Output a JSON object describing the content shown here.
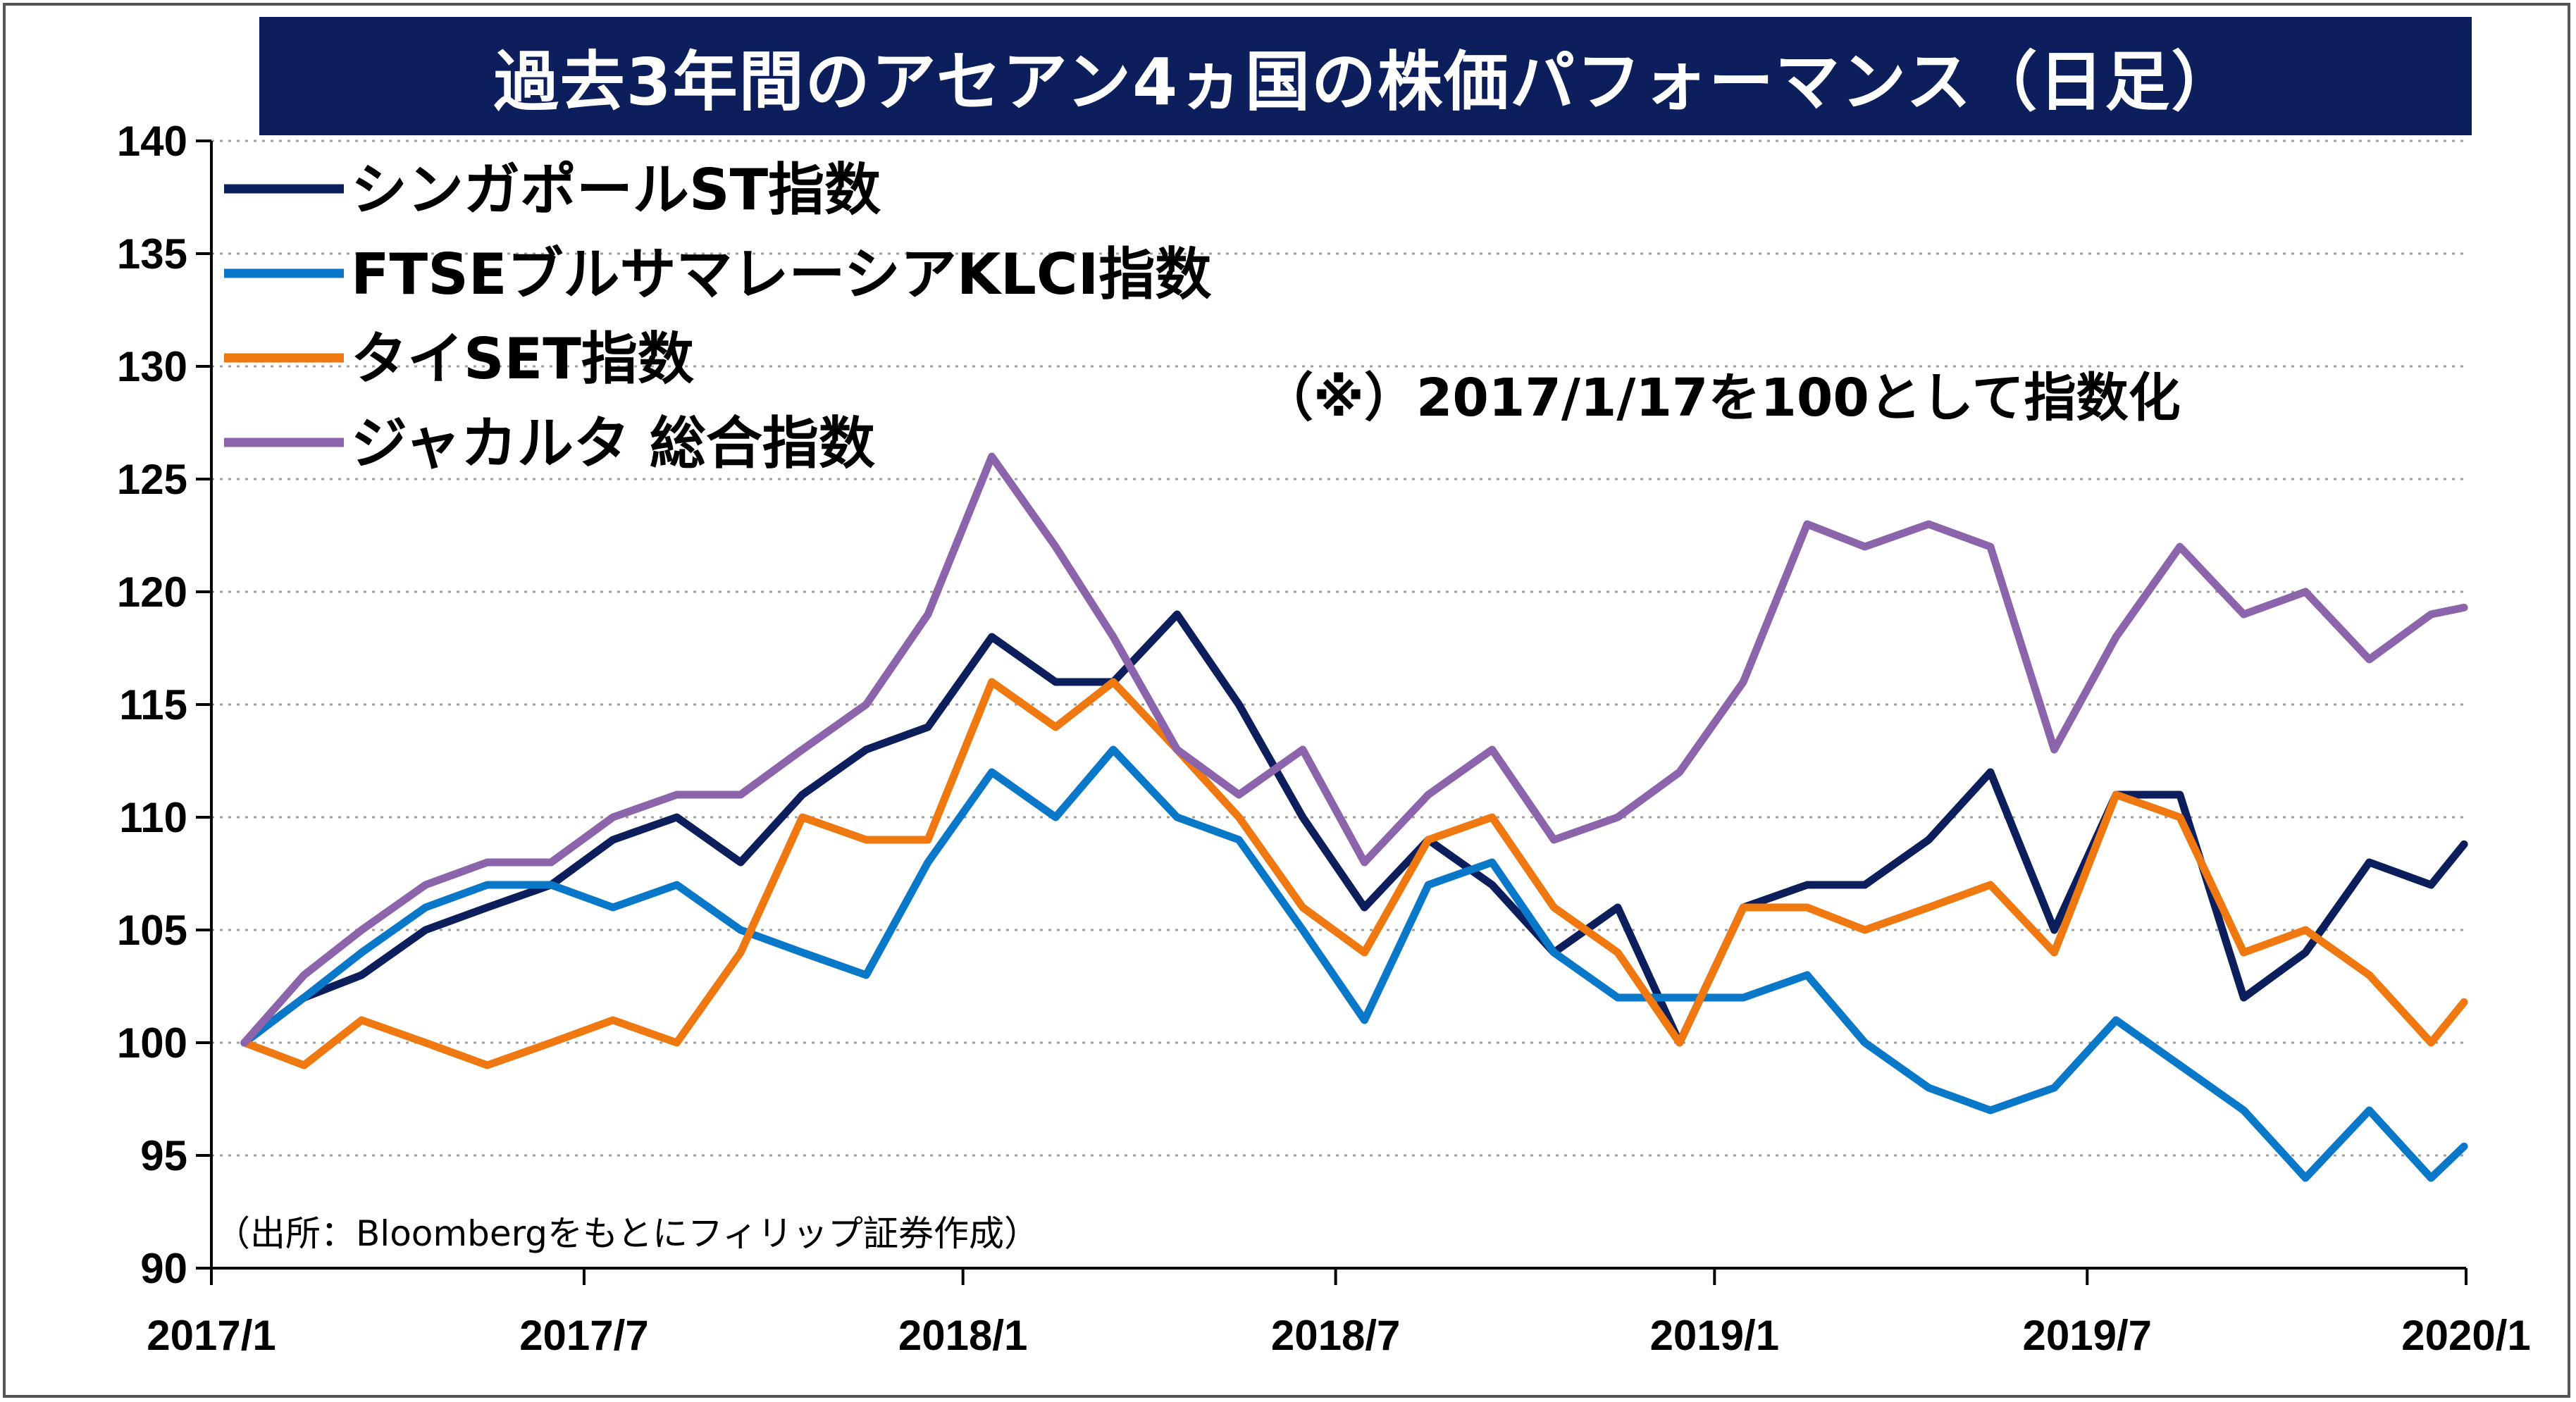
{
  "chart_data": {
    "type": "line",
    "title": "過去3年間のアセアン4ヵ国の株価パフォーマンス（日足）",
    "note": "（※）2017/1/17を100として指数化",
    "source": "（出所：Bloombergをもとにフィリップ証券作成）",
    "xlabel": "",
    "ylabel": "",
    "x_range": [
      "2017-01",
      "2020-01"
    ],
    "x_ticks": [
      "2017/1",
      "2017/7",
      "2018/1",
      "2018/7",
      "2019/1",
      "2019/7",
      "2020/1"
    ],
    "ylim": [
      90,
      140
    ],
    "y_ticks": [
      90,
      95,
      100,
      105,
      110,
      115,
      120,
      125,
      130,
      135,
      140
    ],
    "grid": true,
    "legend_position": "top-left",
    "x": [
      "2017-01-17",
      "2017-02-15",
      "2017-03-15",
      "2017-04-15",
      "2017-05-15",
      "2017-06-15",
      "2017-07-15",
      "2017-08-15",
      "2017-09-15",
      "2017-10-15",
      "2017-11-15",
      "2017-12-15",
      "2018-01-15",
      "2018-02-15",
      "2018-03-15",
      "2018-04-15",
      "2018-05-15",
      "2018-06-15",
      "2018-07-15",
      "2018-08-15",
      "2018-09-15",
      "2018-10-15",
      "2018-11-15",
      "2018-12-15",
      "2019-01-15",
      "2019-02-15",
      "2019-03-15",
      "2019-04-15",
      "2019-05-15",
      "2019-06-15",
      "2019-07-15",
      "2019-08-15",
      "2019-09-15",
      "2019-10-15",
      "2019-11-15",
      "2019-12-15",
      "2019-12-31"
    ],
    "series": [
      {
        "name": "シンガポールST指数",
        "color": "#0c1f5c",
        "values": [
          100,
          102,
          103,
          105,
          106,
          107,
          109,
          110,
          108,
          111,
          113,
          114,
          118,
          116,
          116,
          119,
          115,
          110,
          106,
          109,
          107,
          104,
          106,
          100,
          106,
          107,
          107,
          109,
          112,
          105,
          111,
          111,
          102,
          104,
          108,
          107,
          108.8
        ]
      },
      {
        "name": "FTSEブルサマレーシアKLCI指数",
        "color": "#0a78c8",
        "values": [
          100,
          102,
          104,
          106,
          107,
          107,
          106,
          107,
          105,
          104,
          103,
          108,
          112,
          110,
          113,
          110,
          109,
          105,
          101,
          107,
          108,
          104,
          102,
          102,
          102,
          103,
          100,
          98,
          97,
          98,
          101,
          99,
          97,
          94,
          97,
          94,
          95.4
        ]
      },
      {
        "name": "タイSET指数",
        "color": "#f07810",
        "values": [
          100,
          99,
          101,
          100,
          99,
          100,
          101,
          100,
          104,
          110,
          109,
          109,
          116,
          114,
          116,
          113,
          110,
          106,
          104,
          109,
          110,
          106,
          104,
          100,
          106,
          106,
          105,
          106,
          107,
          104,
          111,
          110,
          104,
          105,
          103,
          100,
          101.8
        ]
      },
      {
        "name": "ジャカルタ 総合指数",
        "color": "#8c64ac",
        "values": [
          100,
          103,
          105,
          107,
          108,
          108,
          110,
          111,
          111,
          113,
          115,
          119,
          126,
          122,
          118,
          113,
          111,
          113,
          108,
          111,
          113,
          109,
          110,
          112,
          116,
          123,
          122,
          123,
          122,
          113,
          118,
          122,
          119,
          120,
          117,
          119,
          119.3
        ]
      }
    ]
  }
}
